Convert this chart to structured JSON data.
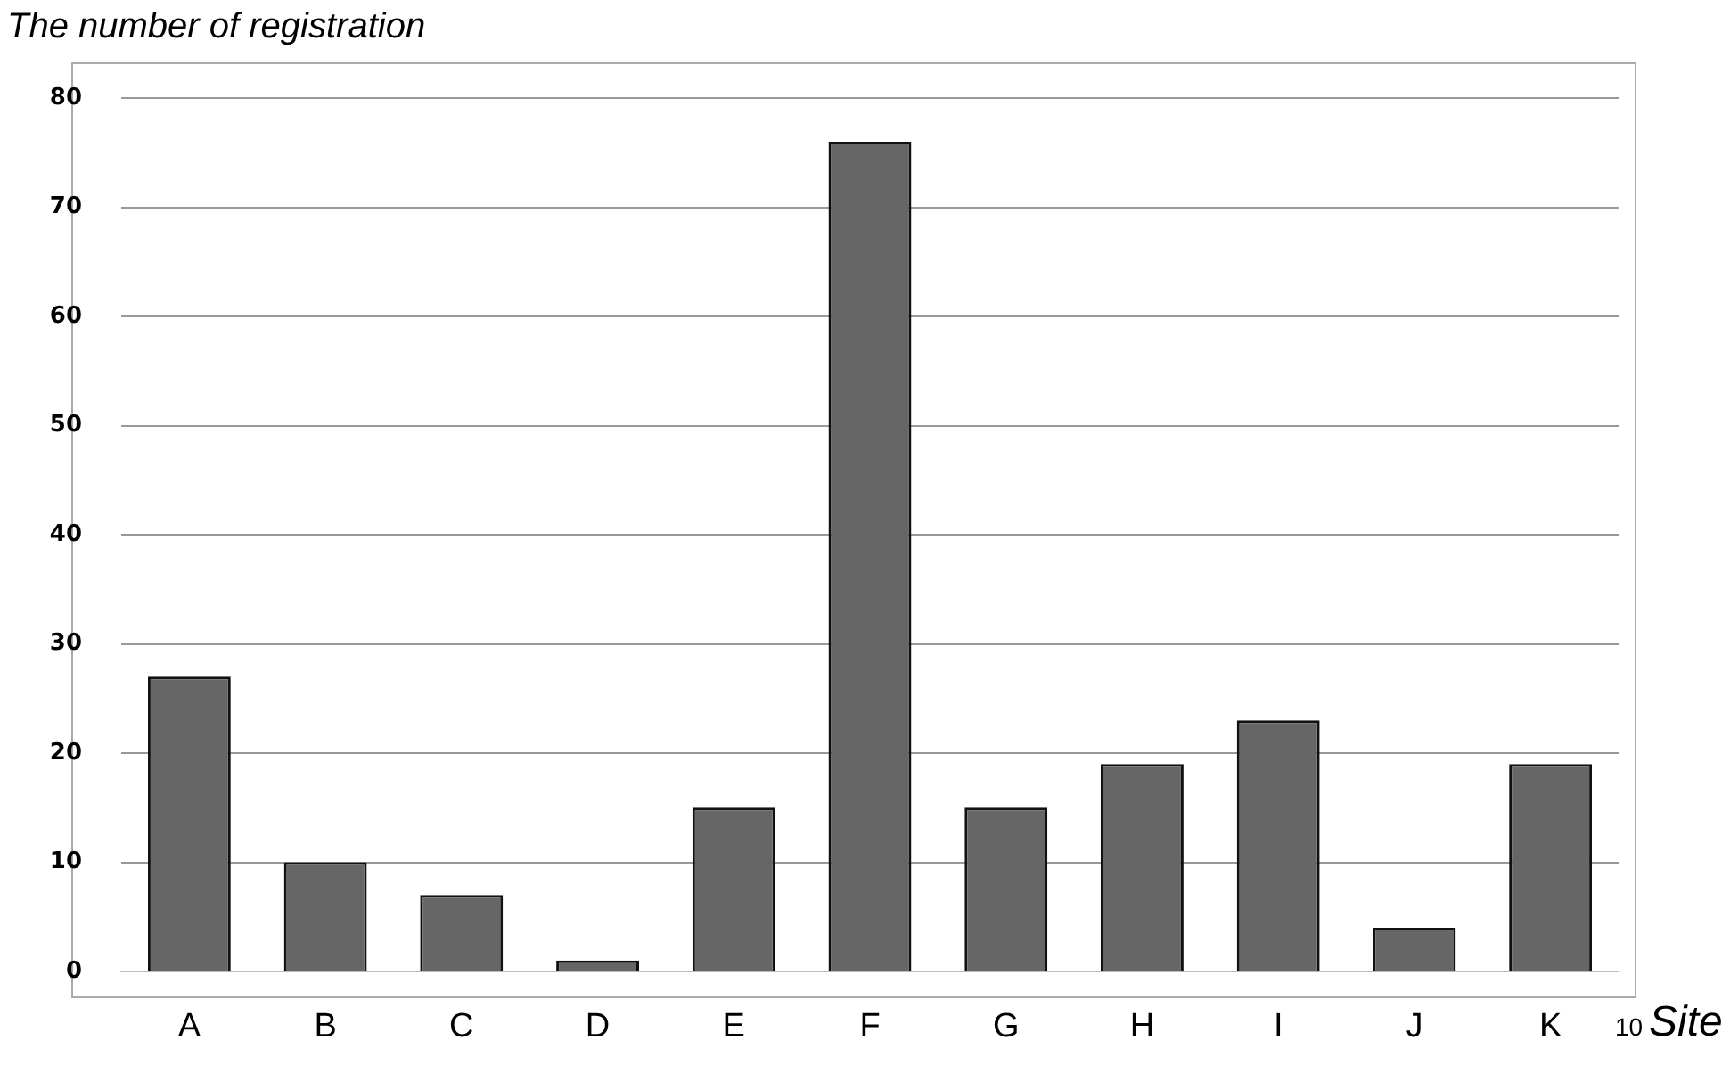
{
  "chart_data": {
    "type": "bar",
    "ylabel": "The number of registration",
    "xlabel": "Site",
    "annotations": [
      "10"
    ],
    "categories": [
      "A",
      "B",
      "C",
      "D",
      "E",
      "F",
      "G",
      "H",
      "I",
      "J",
      "K"
    ],
    "values": [
      27,
      10,
      7,
      1,
      15,
      76,
      15,
      19,
      23,
      4,
      19
    ],
    "color": "#666666",
    "ylim": [
      0,
      80
    ],
    "yticks": [
      0,
      10,
      20,
      30,
      40,
      50,
      60,
      70,
      80
    ],
    "grid": "y",
    "legend": false
  }
}
